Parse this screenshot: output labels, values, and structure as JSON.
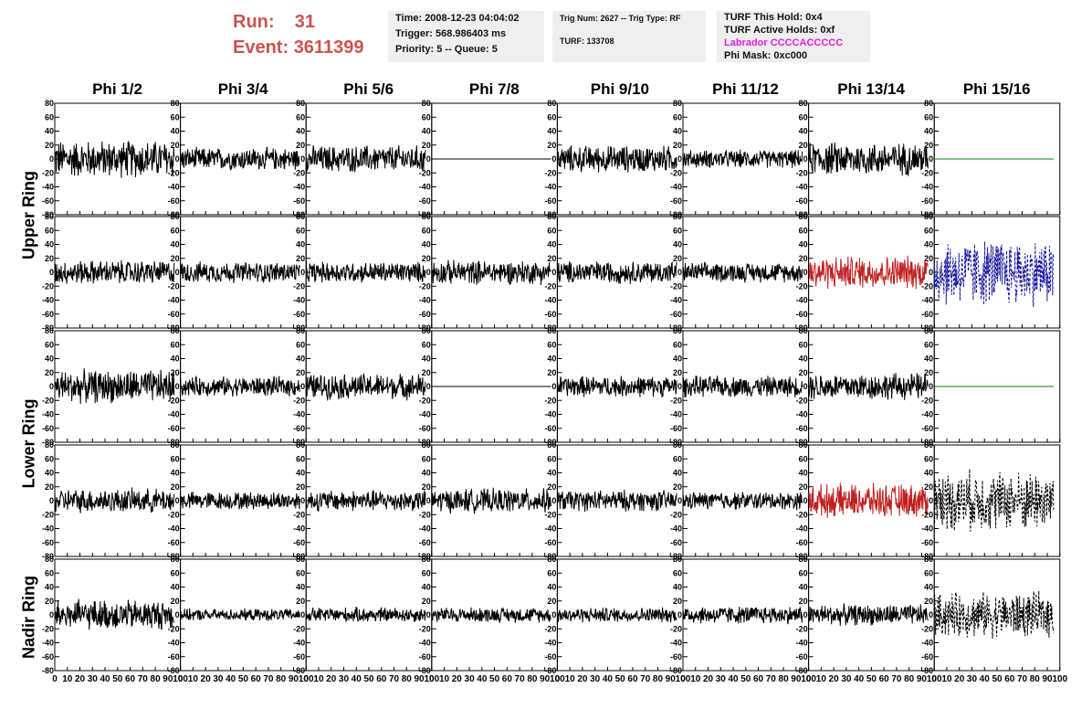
{
  "header": {
    "run_label": "Run:",
    "run_value": "31",
    "event_label": "Event:",
    "event_value": "3611399",
    "time": "Time: 2008-12-23 04:04:02",
    "trigger": "Trigger: 568.986403 ms",
    "priority": "Priority: 5 -- Queue: 5",
    "trig_num": "Trig Num: 2627 -- Trig Type: RF",
    "turf": "TURF: 133708",
    "turf_hold": "TURF This Hold: 0x4",
    "turf_active": "TURF Active Holds: 0xf",
    "labrador": "Labrador CCCCACCCCC",
    "phi_mask": "Phi Mask: 0xc000",
    "labrador_color": "#e020e0"
  },
  "ring_labels": [
    "Upper Ring",
    "Lower Ring",
    "Nadir Ring"
  ],
  "chart_data": {
    "type": "line",
    "columns": [
      "Phi 1/2",
      "Phi 3/4",
      "Phi 5/6",
      "Phi 7/8",
      "Phi 9/10",
      "Phi 11/12",
      "Phi 13/14",
      "Phi 15/16"
    ],
    "xlim": [
      0,
      100
    ],
    "ylim": [
      -80,
      80
    ],
    "xticks": [
      0,
      10,
      20,
      30,
      40,
      50,
      60,
      70,
      80,
      90,
      100
    ],
    "yticks": [
      -80,
      -60,
      -40,
      -20,
      0,
      20,
      40,
      60,
      80
    ],
    "rows": [
      {
        "panels": [
          {
            "color": "#000000",
            "style": "noise",
            "amp": 25
          },
          {
            "color": "#000000",
            "style": "noise",
            "amp": 15
          },
          {
            "color": "#000000",
            "style": "noise",
            "amp": 18
          },
          {
            "color": "#000000",
            "style": "flat",
            "amp": 0
          },
          {
            "color": "#000000",
            "style": "noise",
            "amp": 18
          },
          {
            "color": "#000000",
            "style": "noise",
            "amp": 12
          },
          {
            "color": "#000000",
            "style": "noise",
            "amp": 22
          },
          {
            "color": "#008000",
            "style": "flat",
            "amp": 0
          }
        ]
      },
      {
        "panels": [
          {
            "color": "#000000",
            "style": "noise",
            "amp": 16
          },
          {
            "color": "#000000",
            "style": "noise",
            "amp": 14
          },
          {
            "color": "#000000",
            "style": "noise",
            "amp": 14
          },
          {
            "color": "#000000",
            "style": "noise",
            "amp": 16
          },
          {
            "color": "#000000",
            "style": "noise",
            "amp": 15
          },
          {
            "color": "#000000",
            "style": "noise",
            "amp": 13
          },
          {
            "color": "#c02020",
            "style": "noise",
            "amp": 22
          },
          {
            "color": "#1a1aa0",
            "style": "dashed",
            "amp": 45
          }
        ]
      },
      {
        "panels": [
          {
            "color": "#000000",
            "style": "noise",
            "amp": 22
          },
          {
            "color": "#000000",
            "style": "noise",
            "amp": 13
          },
          {
            "color": "#000000",
            "style": "noise",
            "amp": 17
          },
          {
            "color": "#000000",
            "style": "flat",
            "amp": 0
          },
          {
            "color": "#000000",
            "style": "noise",
            "amp": 14
          },
          {
            "color": "#000000",
            "style": "noise",
            "amp": 14
          },
          {
            "color": "#000000",
            "style": "noise",
            "amp": 18
          },
          {
            "color": "#008000",
            "style": "flat",
            "amp": 0
          }
        ]
      },
      {
        "panels": [
          {
            "color": "#000000",
            "style": "noise",
            "amp": 16
          },
          {
            "color": "#000000",
            "style": "noise",
            "amp": 12
          },
          {
            "color": "#000000",
            "style": "noise",
            "amp": 14
          },
          {
            "color": "#000000",
            "style": "noise",
            "amp": 16
          },
          {
            "color": "#000000",
            "style": "noise",
            "amp": 14
          },
          {
            "color": "#000000",
            "style": "noise",
            "amp": 12
          },
          {
            "color": "#c02020",
            "style": "noise",
            "amp": 22
          },
          {
            "color": "#000000",
            "style": "dashed",
            "amp": 40
          }
        ]
      },
      {
        "panels": [
          {
            "color": "#000000",
            "style": "noise",
            "amp": 20
          },
          {
            "color": "#000000",
            "style": "noise",
            "amp": 8
          },
          {
            "color": "#000000",
            "style": "noise",
            "amp": 10
          },
          {
            "color": "#000000",
            "style": "noise",
            "amp": 10
          },
          {
            "color": "#000000",
            "style": "noise",
            "amp": 10
          },
          {
            "color": "#000000",
            "style": "noise",
            "amp": 12
          },
          {
            "color": "#000000",
            "style": "noise",
            "amp": 14
          },
          {
            "color": "#000000",
            "style": "dashed",
            "amp": 30
          }
        ]
      }
    ]
  }
}
